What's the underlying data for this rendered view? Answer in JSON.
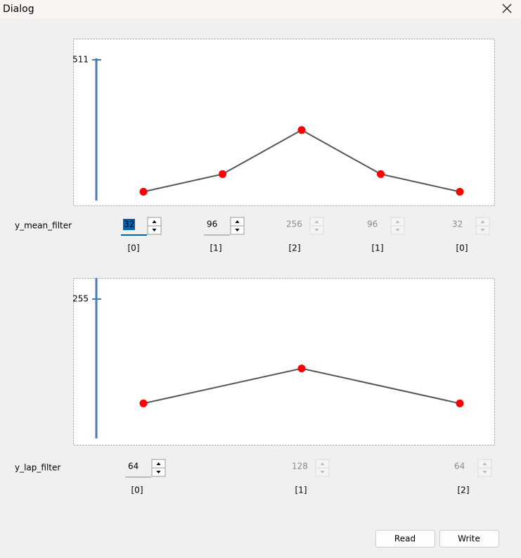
{
  "window": {
    "title": "Dialog"
  },
  "filters": [
    {
      "label": "y_mean_filter",
      "ylim": [
        0,
        511
      ],
      "yticks": [
        511
      ],
      "values": [
        32,
        96,
        256,
        96,
        32
      ],
      "indices": [
        "[0]",
        "[1]",
        "[2]",
        "[1]",
        "[0]"
      ],
      "enabled": [
        true,
        true,
        false,
        false,
        false
      ]
    },
    {
      "label": "y_lap_filter",
      "ylim": [
        0,
        255
      ],
      "yticks": [
        255
      ],
      "values": [
        64,
        128,
        64
      ],
      "indices": [
        "[0]",
        "[1]",
        "[2]"
      ],
      "enabled": [
        true,
        false,
        false
      ]
    }
  ],
  "buttons": [
    "Read",
    "Write"
  ]
}
